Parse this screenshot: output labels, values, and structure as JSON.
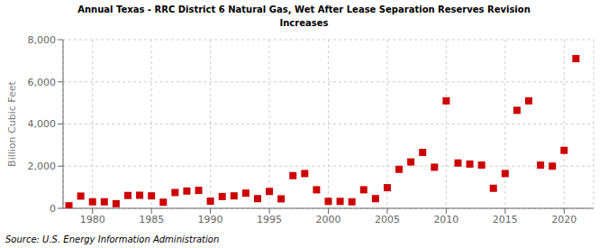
{
  "chart_data": {
    "type": "scatter",
    "title": "Annual Texas - RRC District 6 Natural Gas, Wet After Lease Separation Reserves Revision\nIncreases",
    "ylabel": "Billion Cubic Feet",
    "source": "Source: U.S. Energy Information Administration",
    "x": [
      1978,
      1979,
      1980,
      1981,
      1982,
      1983,
      1984,
      1985,
      1986,
      1987,
      1988,
      1989,
      1990,
      1991,
      1992,
      1993,
      1994,
      1995,
      1996,
      1997,
      1998,
      1999,
      2000,
      2001,
      2002,
      2003,
      2004,
      2005,
      2006,
      2007,
      2008,
      2009,
      2010,
      2011,
      2012,
      2013,
      2014,
      2015,
      2016,
      2017,
      2018,
      2019,
      2020,
      2021
    ],
    "values": [
      120,
      580,
      310,
      310,
      220,
      610,
      620,
      590,
      290,
      750,
      820,
      850,
      340,
      560,
      590,
      720,
      460,
      800,
      450,
      1550,
      1650,
      880,
      330,
      330,
      310,
      880,
      460,
      980,
      1850,
      2200,
      2650,
      1950,
      5100,
      2150,
      2100,
      2050,
      950,
      1650,
      4650,
      5100,
      2050,
      2000,
      2750,
      7100
    ],
    "color": "#cc0000",
    "marker": "square",
    "xlim": [
      1977.5,
      2022.5
    ],
    "ylim": [
      0,
      8000
    ],
    "xticks": [
      1980,
      1985,
      1990,
      1995,
      2000,
      2005,
      2010,
      2015,
      2020
    ],
    "yticks": [
      0,
      {
        "value": 2000,
        "label": "2,000"
      },
      {
        "value": 4000,
        "label": "4,000"
      },
      {
        "value": 6000,
        "label": "6,000"
      },
      {
        "value": 8000,
        "label": "8,000"
      }
    ],
    "grid": true
  }
}
